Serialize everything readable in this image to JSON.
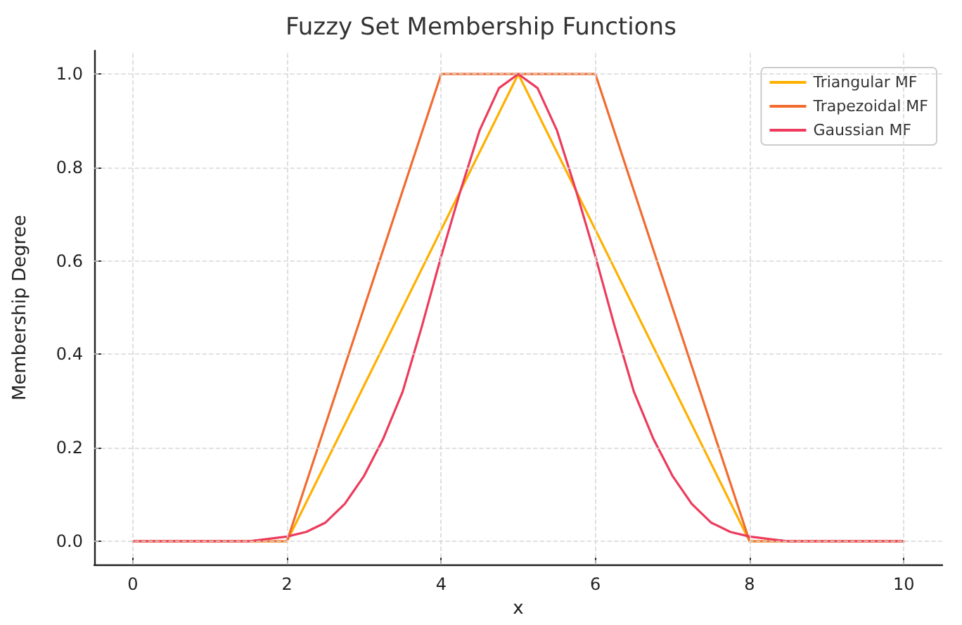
{
  "chart_data": {
    "type": "line",
    "title": "Fuzzy Set Membership Functions",
    "xlabel": "x",
    "ylabel": "Membership Degree",
    "xlim": [
      -0.5,
      10.5
    ],
    "xticks": [
      0,
      2,
      4,
      6,
      8,
      10
    ],
    "ylim": [
      -0.05,
      1.05
    ],
    "yticks": [
      {
        "value": 0,
        "label": "0.0"
      },
      {
        "value": 0.2,
        "label": "0.2"
      },
      {
        "value": 0.4,
        "label": "0.4"
      },
      {
        "value": 0.6,
        "label": "0.6"
      },
      {
        "value": 0.8,
        "label": "0.8"
      },
      {
        "value": 1,
        "label": "1.0"
      }
    ],
    "grid": true,
    "legend": "top right",
    "marker": "none",
    "line_style": "solid",
    "series": [
      {
        "name": "Triangular MF",
        "color": "#ffb000",
        "x": [
          0,
          2,
          5,
          8,
          10
        ],
        "values": [
          0,
          0,
          1,
          0,
          0
        ]
      },
      {
        "name": "Trapezoidal MF",
        "color": "#f26b2f",
        "x": [
          0,
          2,
          4,
          6,
          8,
          10
        ],
        "values": [
          0,
          0,
          1,
          1,
          0,
          0
        ]
      },
      {
        "name": "Gaussian MF",
        "color": "#ec3b5c",
        "x": [
          0,
          1,
          1.5,
          2,
          2.25,
          2.5,
          2.75,
          3,
          3.25,
          3.5,
          3.75,
          4,
          4.25,
          4.5,
          4.75,
          5,
          5.25,
          5.5,
          5.75,
          6,
          6.25,
          6.5,
          6.75,
          7,
          7.25,
          7.5,
          7.75,
          8,
          8.5,
          9,
          10
        ],
        "values": [
          0,
          0,
          0,
          0.01,
          0.02,
          0.04,
          0.08,
          0.14,
          0.22,
          0.32,
          0.46,
          0.61,
          0.75,
          0.88,
          0.97,
          1,
          0.97,
          0.88,
          0.75,
          0.61,
          0.46,
          0.32,
          0.22,
          0.14,
          0.08,
          0.04,
          0.02,
          0.01,
          0,
          0,
          0
        ]
      }
    ]
  }
}
